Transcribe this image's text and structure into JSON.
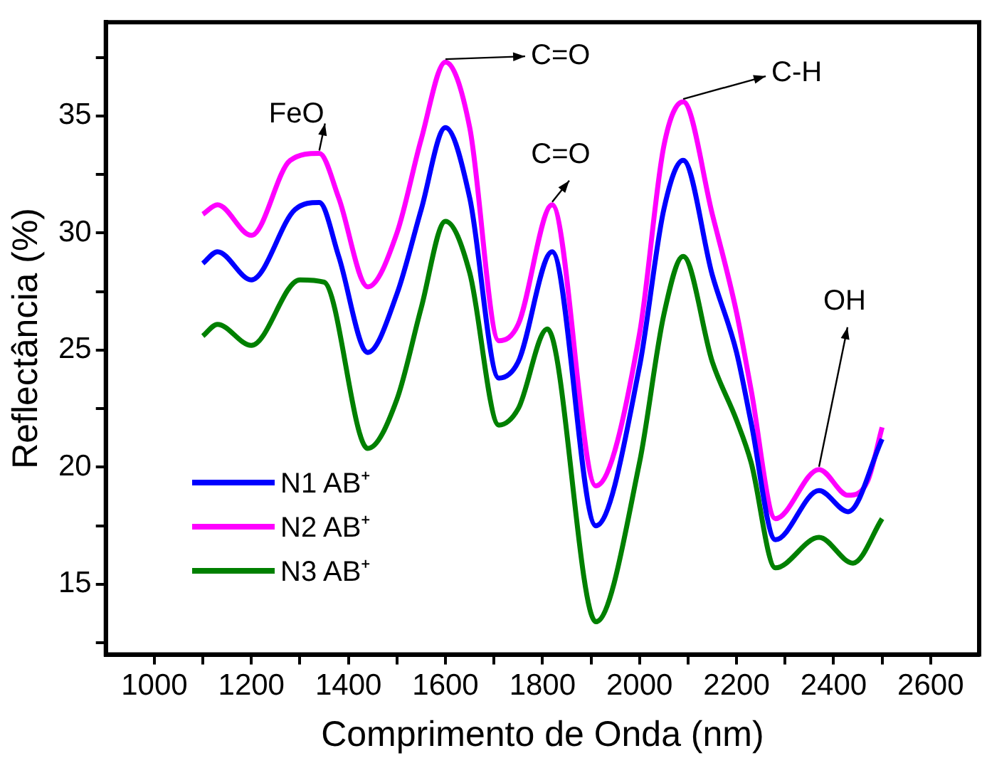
{
  "chart_data": {
    "type": "line",
    "xlabel": "Comprimento de Onda (nm)",
    "ylabel": "Reflectância (%)",
    "xlim": [
      900,
      2700
    ],
    "ylim": [
      12,
      39
    ],
    "xticks": [
      1000,
      {
        "value": 1100,
        "label": null
      },
      1200,
      {
        "value": 1300,
        "label": null
      },
      1400,
      {
        "value": 1500,
        "label": null
      },
      1600,
      {
        "value": 1700,
        "label": null
      },
      1800,
      {
        "value": 1900,
        "label": null
      },
      2000,
      {
        "value": 2100,
        "label": null
      },
      2200,
      {
        "value": 2300,
        "label": null
      },
      2400,
      {
        "value": 2500,
        "label": null
      },
      2600
    ],
    "yticks": [
      {
        "value": 12.5,
        "label": null
      },
      15,
      {
        "value": 17.5,
        "label": null
      },
      20,
      {
        "value": 22.5,
        "label": null
      },
      25,
      {
        "value": 27.5,
        "label": null
      },
      30,
      {
        "value": 32.5,
        "label": null
      },
      35,
      {
        "value": 37.5,
        "label": null
      }
    ],
    "legend": "bottom left",
    "marker": "none",
    "line_style": "solid",
    "series": [
      {
        "name": "N1 AB⁺",
        "color": "#0000ff",
        "x": [
          1100,
          1130,
          1200,
          1290,
          1340,
          1380,
          1440,
          1500,
          1550,
          1600,
          1650,
          1710,
          1750,
          1820,
          1910,
          2000,
          2050,
          2090,
          2150,
          2200,
          2230,
          2280,
          2370,
          2430,
          2500
        ],
        "values": [
          28.7,
          29.2,
          28.0,
          31.0,
          31.3,
          29.0,
          24.9,
          27.4,
          31.0,
          34.5,
          31.5,
          23.8,
          24.5,
          29.2,
          17.5,
          24.3,
          31.0,
          33.1,
          28.2,
          24.9,
          21.9,
          16.9,
          19.0,
          18.1,
          21.2
        ]
      },
      {
        "name": "N2 AB⁺",
        "color": "#ff00ff",
        "x": [
          1100,
          1130,
          1200,
          1280,
          1340,
          1380,
          1440,
          1500,
          1550,
          1600,
          1650,
          1710,
          1750,
          1820,
          1910,
          2000,
          2050,
          2090,
          2150,
          2200,
          2230,
          2280,
          2370,
          2430,
          2470,
          2500
        ],
        "values": [
          30.8,
          31.2,
          29.9,
          33.1,
          33.4,
          31.5,
          27.7,
          30.0,
          34.0,
          37.3,
          34.5,
          25.4,
          26.1,
          31.2,
          19.2,
          25.7,
          33.7,
          35.6,
          30.8,
          26.6,
          23.3,
          17.8,
          19.9,
          18.8,
          19.4,
          21.7
        ]
      },
      {
        "name": "N3 AB⁺",
        "color": "#008000",
        "x": [
          1100,
          1130,
          1200,
          1300,
          1350,
          1440,
          1500,
          1550,
          1600,
          1650,
          1710,
          1750,
          1810,
          1910,
          2000,
          2050,
          2090,
          2150,
          2200,
          2230,
          2280,
          2370,
          2440,
          2500
        ],
        "values": [
          25.6,
          26.1,
          25.2,
          28.0,
          27.9,
          20.8,
          22.9,
          26.8,
          30.5,
          28.3,
          21.8,
          22.5,
          25.9,
          13.4,
          20.2,
          26.5,
          29.0,
          24.5,
          22.0,
          20.2,
          15.7,
          17.0,
          15.9,
          17.8
        ]
      }
    ],
    "annotations": [
      {
        "text": "FeO",
        "x": 1340,
        "y": 33.4
      },
      {
        "text": "C=O",
        "x": 1600,
        "y": 37.3
      },
      {
        "text": "C=O",
        "x": 1820,
        "y": 31.2
      },
      {
        "text": "C-H",
        "x": 2090,
        "y": 35.6
      },
      {
        "text": "OH",
        "x": 2370,
        "y": 19.9
      }
    ]
  }
}
